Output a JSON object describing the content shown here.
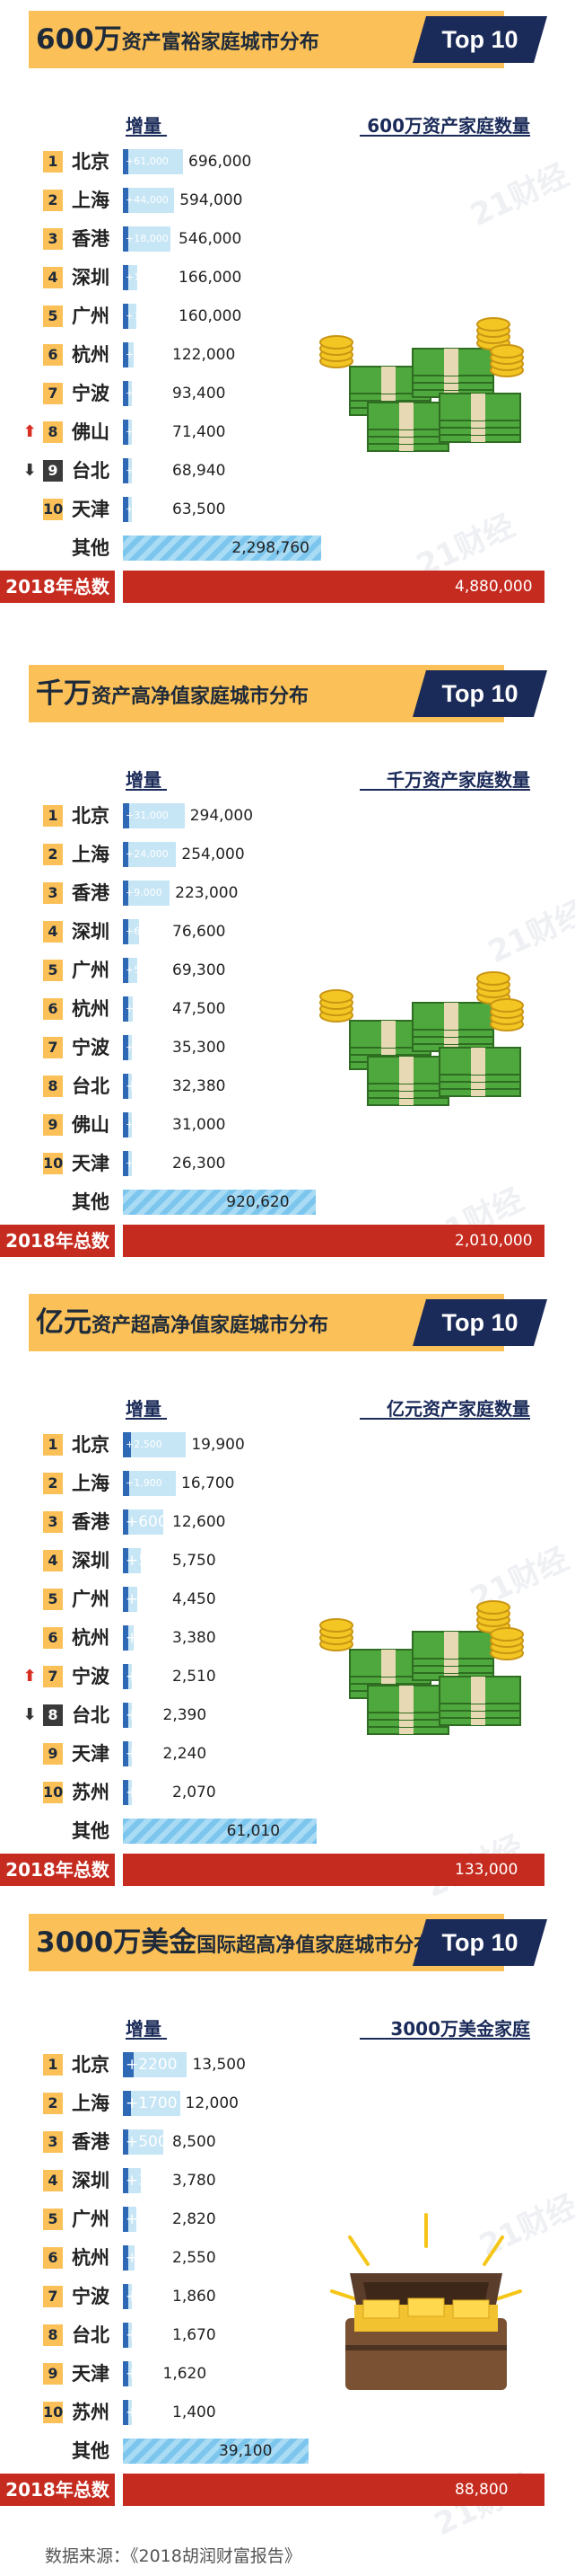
{
  "colors": {
    "title_bg": "#fbc158",
    "top_tab": "#1b2b59",
    "bar": "#c6e5f5",
    "increase": "#2f68b4",
    "other": "#7cc6ee",
    "total": "#c62b1f",
    "rank_box": "#fbc158"
  },
  "watermark": "21财经",
  "source": "数据来源：《2018胡润财富报告》",
  "chart_data": [
    {
      "type": "bar",
      "title_big": "600万",
      "title_small": "资产富裕家庭城市分布",
      "tag": "Top 10",
      "inc_header": "增量",
      "value_header": "600万资产家庭数量",
      "illustration": "money-icon",
      "max": 4880000,
      "rows": [
        {
          "rank": "1",
          "city": "北京",
          "value": 696000,
          "value_label": "696,000",
          "increase": 61000,
          "increase_label": "+61,000",
          "move": ""
        },
        {
          "rank": "2",
          "city": "上海",
          "value": 594000,
          "value_label": "594,000",
          "increase": 44000,
          "increase_label": "+44,000",
          "move": ""
        },
        {
          "rank": "3",
          "city": "香港",
          "value": 546000,
          "value_label": "546,000",
          "increase": 18000,
          "increase_label": "+18,000",
          "move": ""
        },
        {
          "rank": "4",
          "city": "深圳",
          "value": 166000,
          "value_label": "166,000",
          "increase": 11000,
          "increase_label": "+11,000",
          "move": ""
        },
        {
          "rank": "5",
          "city": "广州",
          "value": 160000,
          "value_label": "160,000",
          "increase": 10000,
          "increase_label": "+10,000",
          "move": ""
        },
        {
          "rank": "6",
          "city": "杭州",
          "value": 122000,
          "value_label": "122,000",
          "increase": 9000,
          "increase_label": "+9,000",
          "move": ""
        },
        {
          "rank": "7",
          "city": "宁波",
          "value": 93400,
          "value_label": "93,400",
          "increase": 9900,
          "increase_label": "+9,900",
          "move": ""
        },
        {
          "rank": "8",
          "city": "佛山",
          "value": 71400,
          "value_label": "71,400",
          "increase": 4300,
          "increase_label": "+4,300",
          "move": "up"
        },
        {
          "rank": "9",
          "city": "台北",
          "value": 68940,
          "value_label": "68,940",
          "increase": 1540,
          "increase_label": "+1,540",
          "move": "down"
        },
        {
          "rank": "10",
          "city": "天津",
          "value": 63500,
          "value_label": "63,500",
          "increase": 2000,
          "increase_label": "+2,000",
          "move": ""
        }
      ],
      "other_label": "其他",
      "other_value": 2298760,
      "other_value_label": "2,298,760",
      "total_label": "2018年总数",
      "total_value": 4880000,
      "total_value_label": "4,880,000"
    },
    {
      "type": "bar",
      "title_big": "千万",
      "title_small": "资产高净值家庭城市分布",
      "tag": "Top 10",
      "inc_header": "增量",
      "value_header": "千万资产家庭数量",
      "illustration": "money-icon",
      "max": 2010000,
      "rows": [
        {
          "rank": "1",
          "city": "北京",
          "value": 294000,
          "value_label": "294,000",
          "increase": 31000,
          "increase_label": "+31,000",
          "move": ""
        },
        {
          "rank": "2",
          "city": "上海",
          "value": 254000,
          "value_label": "254,000",
          "increase": 24000,
          "increase_label": "+24,000",
          "move": ""
        },
        {
          "rank": "3",
          "city": "香港",
          "value": 223000,
          "value_label": "223,000",
          "increase": 9000,
          "increase_label": "+9,000",
          "move": ""
        },
        {
          "rank": "4",
          "city": "深圳",
          "value": 76600,
          "value_label": "76,600",
          "increase": 6100,
          "increase_label": "+6,100",
          "move": ""
        },
        {
          "rank": "5",
          "city": "广州",
          "value": 69300,
          "value_label": "69,300",
          "increase": 5800,
          "increase_label": "+5,800",
          "move": ""
        },
        {
          "rank": "6",
          "city": "杭州",
          "value": 47500,
          "value_label": "47,500",
          "increase": 3900,
          "increase_label": "+3,900",
          "move": ""
        },
        {
          "rank": "7",
          "city": "宁波",
          "value": 35300,
          "value_label": "35,300",
          "increase": 3600,
          "increase_label": "+3,600",
          "move": ""
        },
        {
          "rank": "8",
          "city": "台北",
          "value": 32380,
          "value_label": "32,380",
          "increase": 800,
          "increase_label": "+800",
          "move": ""
        },
        {
          "rank": "9",
          "city": "佛山",
          "value": 31000,
          "value_label": "31,000",
          "increase": 2500,
          "increase_label": "+2,500",
          "move": ""
        },
        {
          "rank": "10",
          "city": "天津",
          "value": 26300,
          "value_label": "26,300",
          "increase": 1100,
          "increase_label": "+1,100",
          "move": ""
        }
      ],
      "other_label": "其他",
      "other_value": 920620,
      "other_value_label": "920,620",
      "total_label": "2018年总数",
      "total_value": 2010000,
      "total_value_label": "2,010,000"
    },
    {
      "type": "bar",
      "title_big": "亿元",
      "title_small": "资产超高净值家庭城市分布",
      "tag": "Top 10",
      "inc_header": "增量",
      "value_header": "亿元资产家庭数量",
      "illustration": "money-icon",
      "max": 133000,
      "rows": [
        {
          "rank": "1",
          "city": "北京",
          "value": 19900,
          "value_label": "19,900",
          "increase": 2500,
          "increase_label": "+2,500",
          "move": ""
        },
        {
          "rank": "2",
          "city": "上海",
          "value": 16700,
          "value_label": "16,700",
          "increase": 1900,
          "increase_label": "+1,900",
          "move": ""
        },
        {
          "rank": "3",
          "city": "香港",
          "value": 12600,
          "value_label": "12,600",
          "increase": 600,
          "increase_label": "+600",
          "move": ""
        },
        {
          "rank": "4",
          "city": "深圳",
          "value": 5750,
          "value_label": "5,750",
          "increase": 550,
          "increase_label": "+550",
          "move": ""
        },
        {
          "rank": "5",
          "city": "广州",
          "value": 4450,
          "value_label": "4,450",
          "increase": 430,
          "increase_label": "+430",
          "move": ""
        },
        {
          "rank": "6",
          "city": "杭州",
          "value": 3380,
          "value_label": "3,380",
          "increase": 290,
          "increase_label": "+290",
          "move": ""
        },
        {
          "rank": "7",
          "city": "宁波",
          "value": 2510,
          "value_label": "2,510",
          "increase": 320,
          "increase_label": "+320",
          "move": "up"
        },
        {
          "rank": "8",
          "city": "台北",
          "value": 2390,
          "value_label": "2,390",
          "increase": 80,
          "increase_label": "+80",
          "move": "down"
        },
        {
          "rank": "9",
          "city": "天津",
          "value": 2240,
          "value_label": "2,240",
          "increase": 90,
          "increase_label": "+90",
          "move": ""
        },
        {
          "rank": "10",
          "city": "苏州",
          "value": 2070,
          "value_label": "2,070",
          "increase": 170,
          "increase_label": "+170",
          "move": ""
        }
      ],
      "other_label": "其他",
      "other_value": 61010,
      "other_value_label": "61,010",
      "total_label": "2018年总数",
      "total_value": 133000,
      "total_value_label": "133,000"
    },
    {
      "type": "bar",
      "title_big": "3000万美金",
      "title_small": "国际超高净值家庭城市分布",
      "tag": "Top 10",
      "inc_header": "增量",
      "value_header": "3000万美金家庭",
      "illustration": "treasure-chest-icon",
      "max": 88800,
      "rows": [
        {
          "rank": "1",
          "city": "北京",
          "value": 13500,
          "value_label": "13,500",
          "increase": 2200,
          "increase_label": "+2200",
          "move": ""
        },
        {
          "rank": "2",
          "city": "上海",
          "value": 12000,
          "value_label": "12,000",
          "increase": 1700,
          "increase_label": "+1700",
          "move": ""
        },
        {
          "rank": "3",
          "city": "香港",
          "value": 8500,
          "value_label": "8,500",
          "increase": 500,
          "increase_label": "+500",
          "move": ""
        },
        {
          "rank": "4",
          "city": "深圳",
          "value": 3780,
          "value_label": "3,780",
          "increase": 390,
          "increase_label": "+390",
          "move": ""
        },
        {
          "rank": "5",
          "city": "广州",
          "value": 2820,
          "value_label": "2,820",
          "increase": 280,
          "increase_label": "+280",
          "move": ""
        },
        {
          "rank": "6",
          "city": "杭州",
          "value": 2550,
          "value_label": "2,550",
          "increase": 230,
          "increase_label": "+230",
          "move": ""
        },
        {
          "rank": "7",
          "city": "宁波",
          "value": 1860,
          "value_label": "1,860",
          "increase": 230,
          "increase_label": "+230",
          "move": ""
        },
        {
          "rank": "8",
          "city": "台北",
          "value": 1670,
          "value_label": "1,670",
          "increase": 110,
          "increase_label": "+110",
          "move": ""
        },
        {
          "rank": "9",
          "city": "天津",
          "value": 1620,
          "value_label": "1,620",
          "increase": 90,
          "increase_label": "+90",
          "move": ""
        },
        {
          "rank": "10",
          "city": "苏州",
          "value": 1400,
          "value_label": "1,400",
          "increase": 110,
          "increase_label": "+110",
          "move": ""
        }
      ],
      "other_label": "其他",
      "other_value": 39100,
      "other_value_label": "39,100",
      "total_label": "2018年总数",
      "total_value": 88800,
      "total_value_label": "88,800"
    }
  ]
}
